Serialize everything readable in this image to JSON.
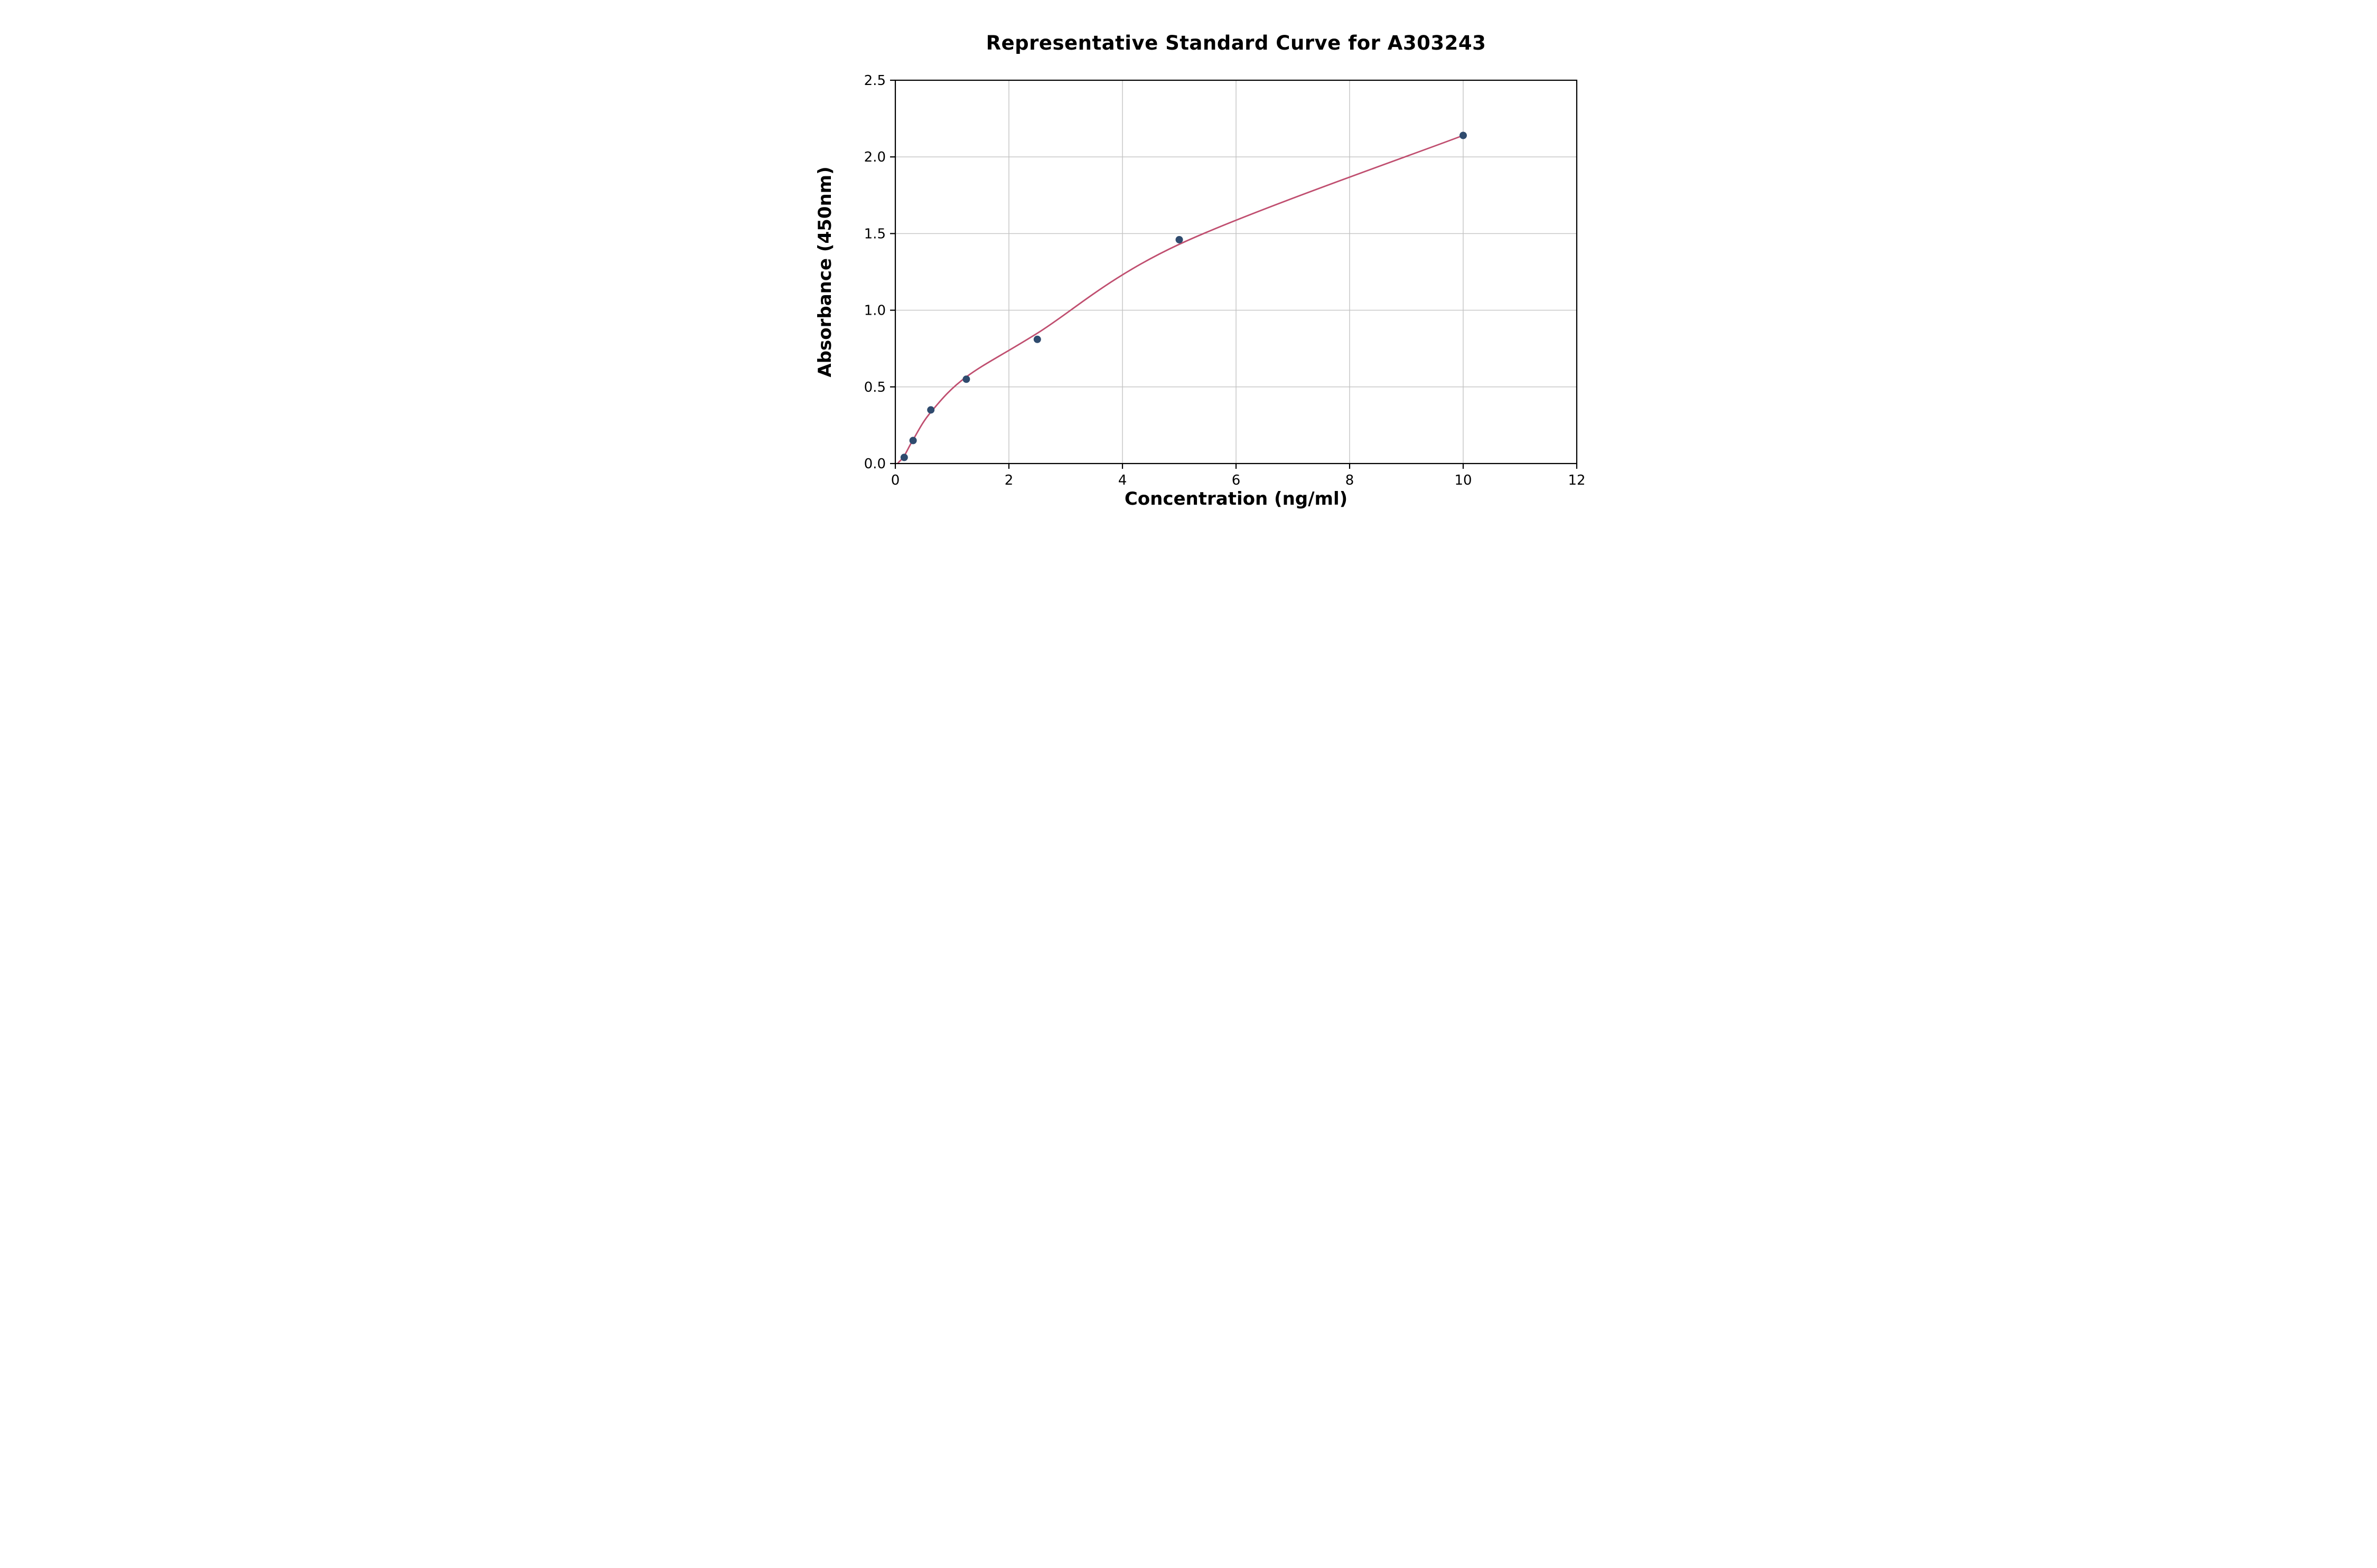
{
  "chart_data": {
    "type": "scatter",
    "title": "Representative Standard Curve for A303243",
    "xlabel": "Concentration (ng/ml)",
    "ylabel": "Absorbance (450nm)",
    "xlim": [
      0,
      12
    ],
    "ylim": [
      0,
      2.5
    ],
    "xticks": [
      0,
      2,
      4,
      6,
      8,
      10,
      12
    ],
    "xtick_labels": [
      "0",
      "2",
      "4",
      "6",
      "8",
      "10",
      "12"
    ],
    "yticks": [
      0,
      0.5,
      1,
      1.5,
      2,
      2.5
    ],
    "ytick_labels": [
      "0.0",
      "0.5",
      "1.0",
      "1.5",
      "2.0",
      "2.5"
    ],
    "grid": true,
    "legend_position": "none",
    "points": {
      "x": [
        0.156,
        0.313,
        0.625,
        1.25,
        2.5,
        5,
        10
      ],
      "y": [
        0.04,
        0.15,
        0.35,
        0.55,
        0.81,
        1.46,
        2.14
      ]
    },
    "fit_curve": {
      "points": [
        [
          0.05,
          0.005
        ],
        [
          0.156,
          0.05
        ],
        [
          0.313,
          0.155
        ],
        [
          0.625,
          0.335
        ],
        [
          1.25,
          0.565
        ],
        [
          2.5,
          0.85
        ],
        [
          5,
          1.43
        ],
        [
          10,
          2.14
        ]
      ],
      "color": "#c04f70"
    },
    "point_color": "#2f4b6e",
    "grid_color": "#c3c3c3",
    "axis_color": "#000000",
    "background": "#ffffff"
  }
}
